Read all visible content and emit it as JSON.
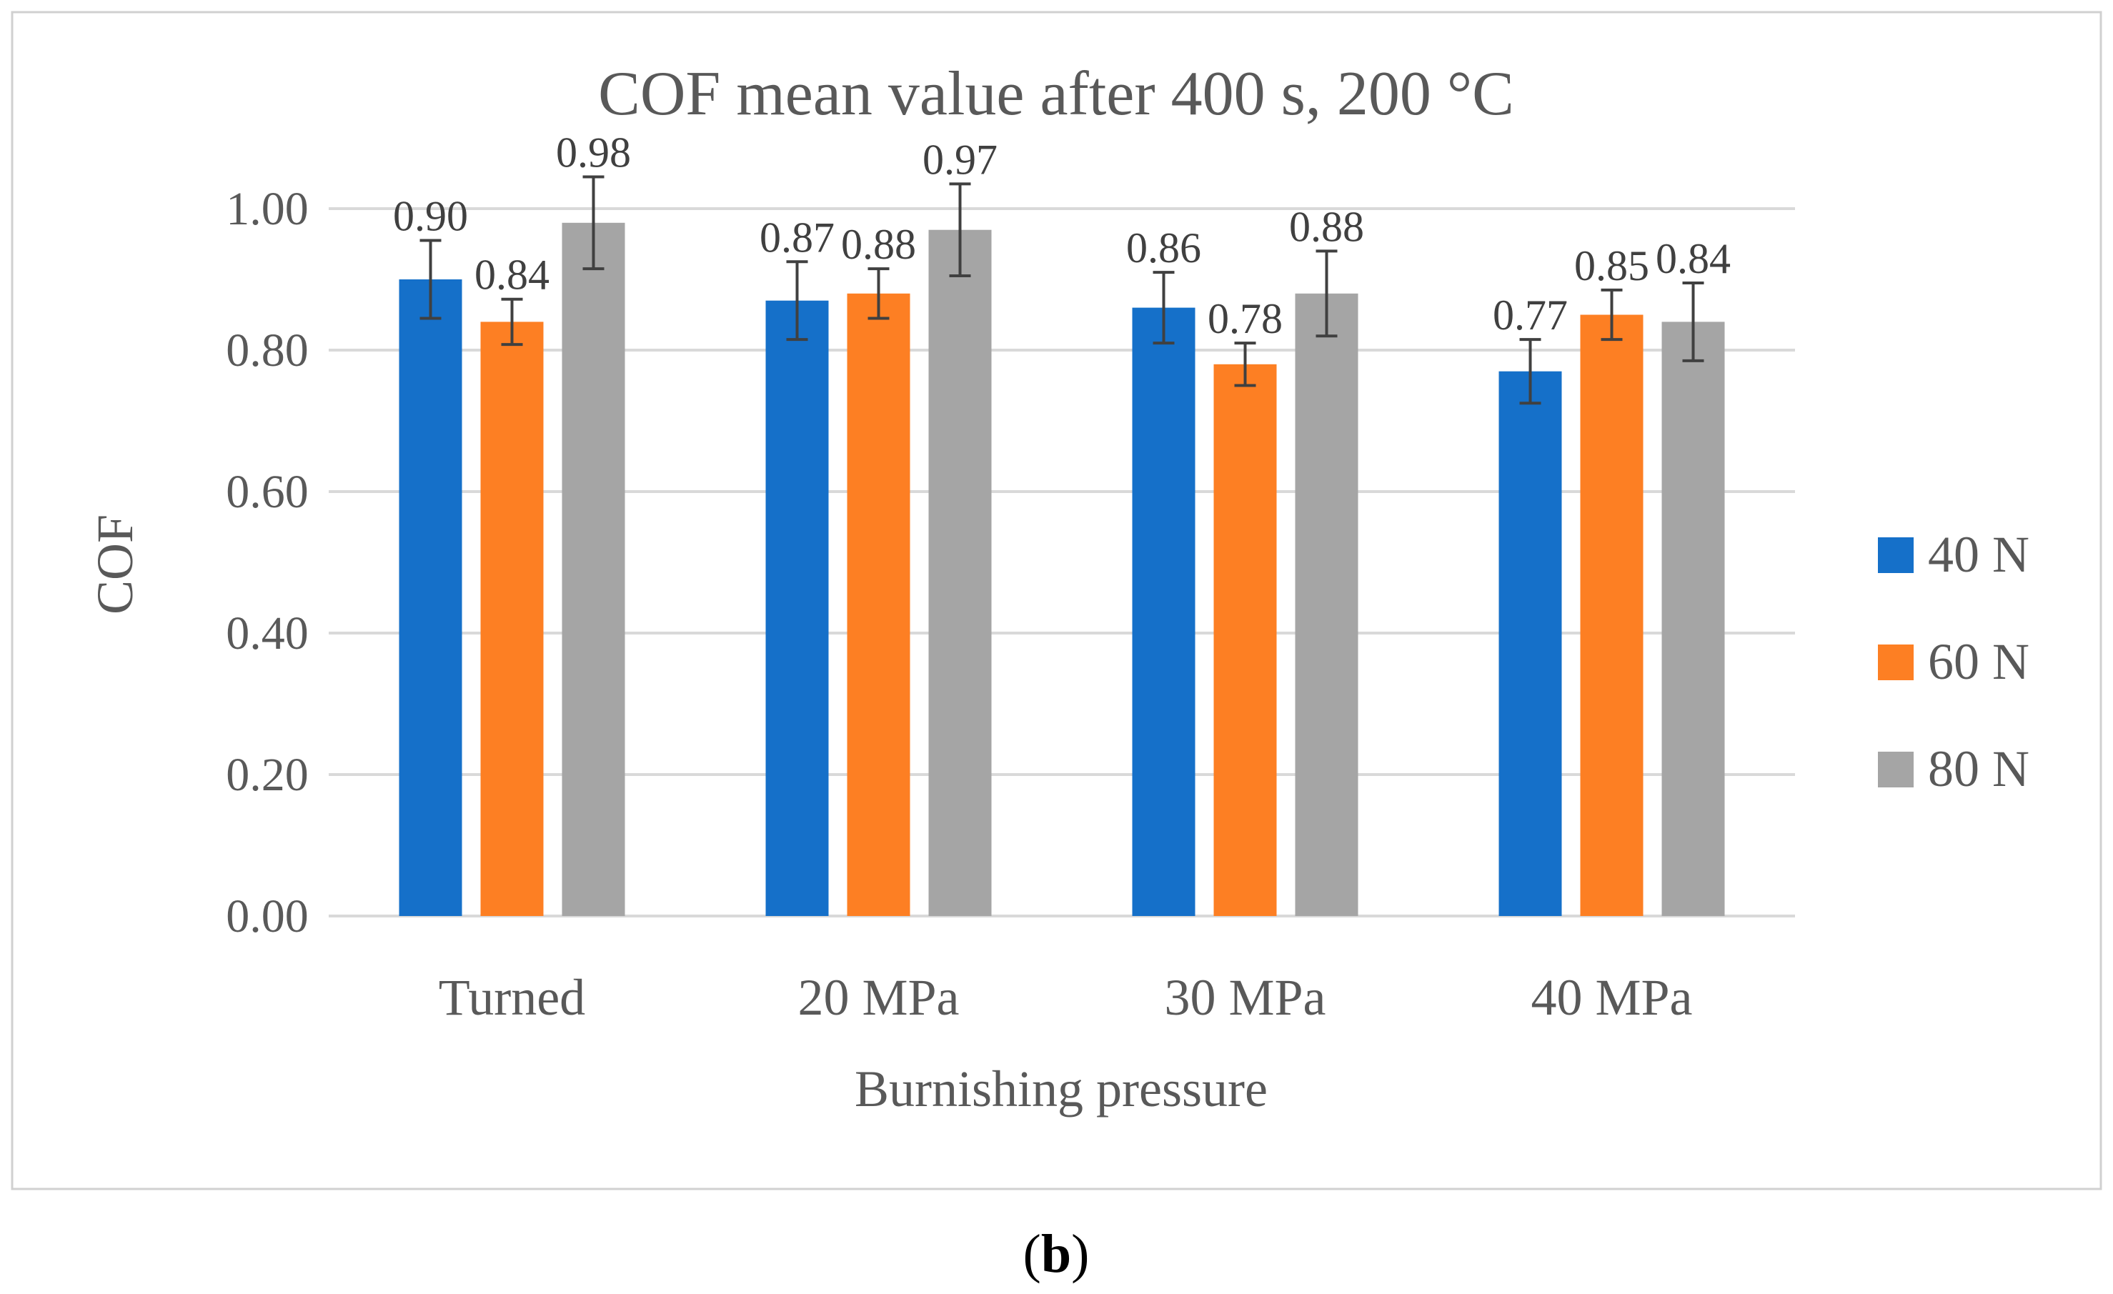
{
  "chart_data": {
    "type": "bar",
    "title": "COF mean value after 400 s, 200 °C",
    "xlabel": "Burnishing pressure",
    "ylabel": "COF",
    "ylim": [
      0,
      1.0
    ],
    "yticks": [
      "0.00",
      "0.20",
      "0.40",
      "0.60",
      "0.80",
      "1.00"
    ],
    "categories": [
      "Turned",
      "20 MPa",
      "30 MPa",
      "40 MPa"
    ],
    "grid": true,
    "legend_position": "right",
    "series": [
      {
        "name": "40 N",
        "color": "#1570C9",
        "values": [
          0.9,
          0.87,
          0.86,
          0.77
        ],
        "errors": [
          0.055,
          0.055,
          0.05,
          0.045
        ],
        "labels": [
          "0.90",
          "0.87",
          "0.86",
          "0.77"
        ]
      },
      {
        "name": "60 N",
        "color": "#FD7F23",
        "values": [
          0.84,
          0.88,
          0.78,
          0.85
        ],
        "errors": [
          0.032,
          0.035,
          0.03,
          0.035
        ],
        "labels": [
          "0.84",
          "0.88",
          "0.78",
          "0.85"
        ]
      },
      {
        "name": "80 N",
        "color": "#A5A5A5",
        "values": [
          0.98,
          0.97,
          0.88,
          0.84
        ],
        "errors": [
          0.065,
          0.065,
          0.06,
          0.055
        ],
        "labels": [
          "0.98",
          "0.97",
          "0.88",
          "0.84"
        ]
      }
    ]
  },
  "caption": {
    "open": "(",
    "letter": "b",
    "close": ")"
  }
}
